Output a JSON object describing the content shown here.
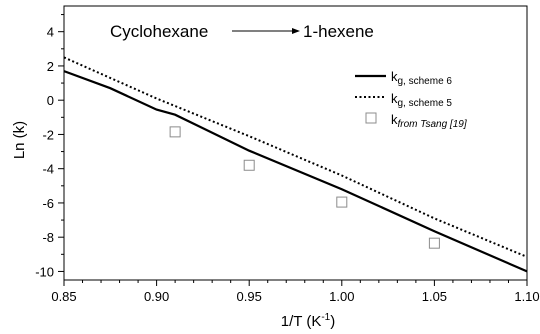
{
  "chart_data": {
    "type": "line",
    "title": {
      "left": "Cyclohexane",
      "right": "1-hexene"
    },
    "xlabel": {
      "main": "1/T (K",
      "sup": "-1",
      "close": ")"
    },
    "ylabel": "Ln (k)",
    "xlim": [
      0.85,
      1.1
    ],
    "ylim": [
      -10.5,
      5.5
    ],
    "xticks": [
      0.85,
      0.9,
      0.95,
      1.0,
      1.05,
      1.1
    ],
    "xtick_labels": [
      "0.85",
      "0.90",
      "0.95",
      "1.00",
      "1.05",
      "1.10"
    ],
    "yticks": [
      -10,
      -8,
      -6,
      -4,
      -2,
      0,
      2,
      4
    ],
    "ytick_labels": [
      "-10",
      "-8",
      "-6",
      "-4",
      "-2",
      "0",
      "2",
      "4"
    ],
    "grid": false,
    "legend_position": "top-right",
    "series": [
      {
        "key": "scheme6",
        "style": "solid-line",
        "color": "#000000",
        "legend": {
          "main": "k",
          "sub": "g, scheme 6"
        },
        "x": [
          0.85,
          0.875,
          0.9,
          0.91,
          0.95,
          1.0,
          1.05,
          1.1
        ],
        "y": [
          1.7,
          0.7,
          -0.55,
          -0.85,
          -2.95,
          -5.2,
          -7.65,
          -10.0
        ]
      },
      {
        "key": "scheme5",
        "style": "dotted-line",
        "color": "#000000",
        "legend": {
          "main": "k",
          "sub": "g, scheme 5"
        },
        "x": [
          0.85,
          0.9,
          0.95,
          1.0,
          1.05,
          1.1
        ],
        "y": [
          2.5,
          0.1,
          -2.1,
          -4.4,
          -6.9,
          -9.15
        ]
      },
      {
        "key": "tsang",
        "style": "open-square-markers",
        "color": "#8c8c8c",
        "legend": {
          "main": "k",
          "sub": "from Tsang [19]"
        },
        "x": [
          0.91,
          0.95,
          1.0,
          1.05
        ],
        "y": [
          -1.85,
          -3.8,
          -5.95,
          -8.35
        ]
      }
    ]
  }
}
